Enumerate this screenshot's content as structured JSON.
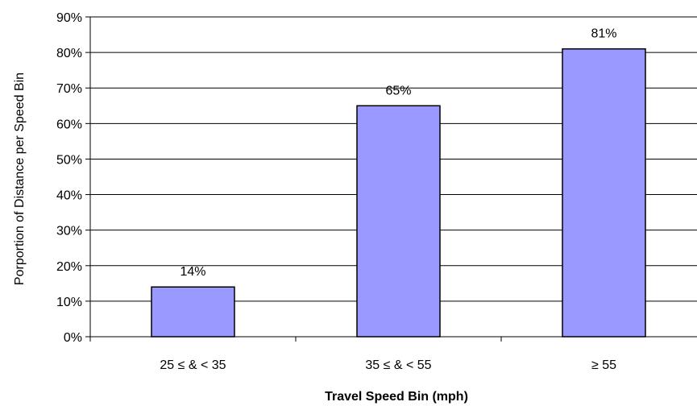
{
  "chart_data": {
    "type": "bar",
    "title": "",
    "xlabel": "Travel Speed Bin (mph)",
    "ylabel": "Porportion of Distance per Speed Bin",
    "categories": [
      "25 ≤ & < 35",
      "35 ≤ & < 55",
      "≥ 55"
    ],
    "values": [
      14,
      65,
      81
    ],
    "data_labels": [
      "14%",
      "65%",
      "81%"
    ],
    "ylim": [
      0,
      90
    ],
    "yticks": [
      0,
      10,
      20,
      30,
      40,
      50,
      60,
      70,
      80,
      90
    ],
    "ytick_labels": [
      "0%",
      "10%",
      "20%",
      "30%",
      "40%",
      "50%",
      "60%",
      "70%",
      "80%",
      "90%"
    ],
    "grid": "horizontal",
    "legend": "none",
    "bar_color": "#9999ff",
    "bar_stroke": "#000000"
  }
}
